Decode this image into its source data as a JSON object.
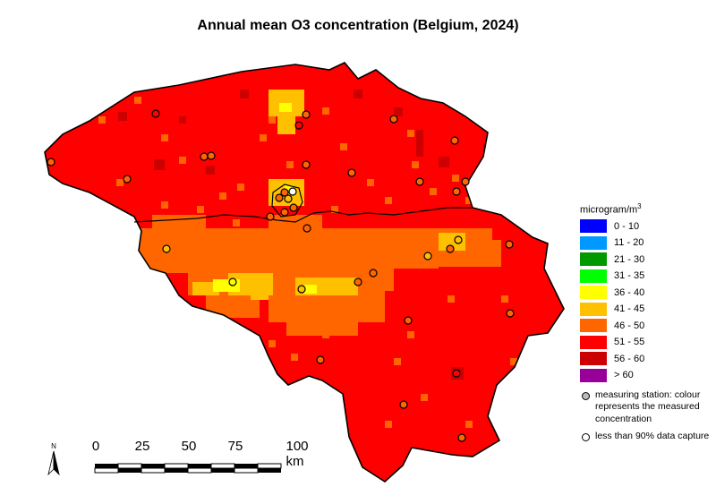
{
  "title": "Annual mean O3 concentration (Belgium, 2024)",
  "legend": {
    "unit_base": "microgram/m",
    "unit_exp": "3",
    "classes": [
      {
        "label": "0 - 10",
        "color": "#0000ff"
      },
      {
        "label": "11 - 20",
        "color": "#0099ff"
      },
      {
        "label": "21 - 30",
        "color": "#009900"
      },
      {
        "label": "31 - 35",
        "color": "#00ff00"
      },
      {
        "label": "36 - 40",
        "color": "#ffff00"
      },
      {
        "label": "41 - 45",
        "color": "#ffc000"
      },
      {
        "label": "46 - 50",
        "color": "#ff6600"
      },
      {
        "label": "51 - 55",
        "color": "#ff0000"
      },
      {
        "label": "56 - 60",
        "color": "#cc0000"
      },
      {
        "label": "> 60",
        "color": "#990099"
      }
    ],
    "note_station": "measuring station: colour represents the measured concentration",
    "note_capture": "less than 90% data capture"
  },
  "scalebar": {
    "labels": [
      "0",
      "25",
      "50",
      "75",
      "100 km"
    ]
  },
  "north_label": "N"
}
